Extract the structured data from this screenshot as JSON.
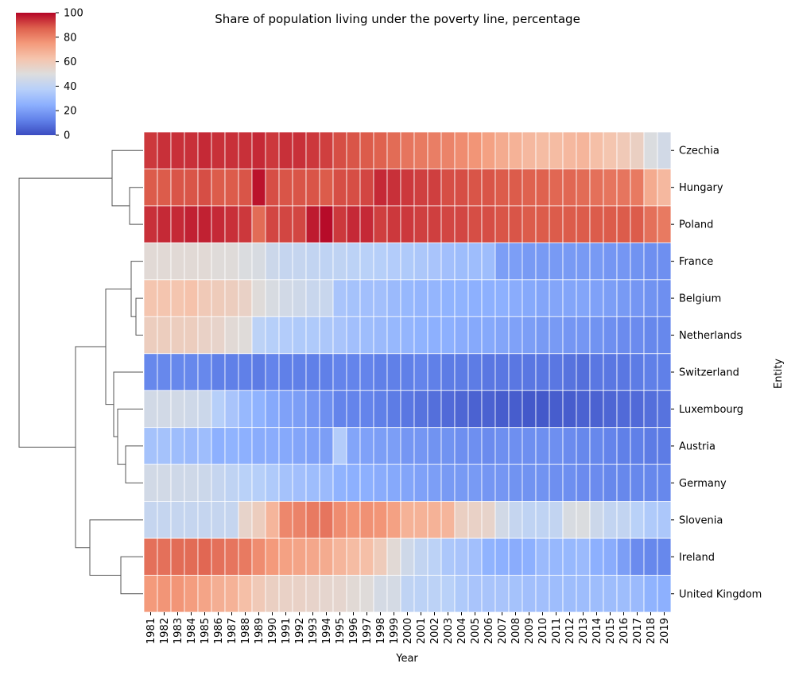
{
  "chart_data": {
    "type": "heatmap",
    "title": "Share of population living under the poverty line, percentage",
    "xlabel": "Year",
    "ylabel": "Entity",
    "colormap": "coolwarm",
    "vmin": 0,
    "vmax": 100,
    "colorbar_ticks": [
      "0",
      "20",
      "40",
      "60",
      "80",
      "100"
    ],
    "colorbar_placement": "top-left",
    "dendrogram": "rows",
    "years": [
      "1981",
      "1982",
      "1983",
      "1984",
      "1985",
      "1986",
      "1987",
      "1988",
      "1989",
      "1990",
      "1991",
      "1992",
      "1993",
      "1994",
      "1995",
      "1996",
      "1997",
      "1998",
      "1999",
      "2000",
      "2001",
      "2002",
      "2003",
      "2004",
      "2005",
      "2006",
      "2007",
      "2008",
      "2009",
      "2010",
      "2011",
      "2012",
      "2013",
      "2014",
      "2015",
      "2016",
      "2017",
      "2018",
      "2019"
    ],
    "entities": [
      "Czechia",
      "Hungary",
      "Poland",
      "France",
      "Belgium",
      "Netherlands",
      "Switzerland",
      "Luxembourg",
      "Austria",
      "Germany",
      "Slovenia",
      "Ireland",
      "United Kingdom"
    ],
    "values": [
      [
        93,
        94,
        94,
        94,
        95,
        94,
        94,
        94,
        95,
        93,
        94,
        94,
        93,
        92,
        90,
        89,
        88,
        87,
        85,
        83,
        82,
        81,
        80,
        78,
        76,
        73,
        70,
        68,
        66,
        65,
        65,
        66,
        67,
        64,
        62,
        60,
        57,
        49,
        46
      ],
      [
        88,
        88,
        89,
        89,
        90,
        88,
        88,
        89,
        98,
        90,
        89,
        89,
        89,
        88,
        90,
        90,
        91,
        95,
        94,
        93,
        92,
        92,
        90,
        90,
        89,
        89,
        88,
        88,
        87,
        87,
        86,
        86,
        85,
        84,
        83,
        83,
        82,
        70,
        66
      ],
      [
        94,
        95,
        95,
        96,
        96,
        95,
        94,
        93,
        85,
        91,
        91,
        91,
        97,
        99,
        93,
        95,
        95,
        92,
        93,
        93,
        92,
        92,
        91,
        91,
        90,
        90,
        89,
        89,
        88,
        88,
        88,
        88,
        88,
        88,
        88,
        88,
        88,
        84,
        82
      ],
      [
        52,
        52,
        52,
        52,
        52,
        51,
        51,
        49,
        48,
        44,
        42,
        42,
        41,
        40,
        40,
        39,
        38,
        37,
        36,
        35,
        34,
        33,
        31,
        30,
        30,
        30,
        20,
        20,
        19,
        19,
        19,
        19,
        19,
        19,
        18,
        18,
        17,
        16,
        16
      ],
      [
        62,
        62,
        62,
        63,
        60,
        59,
        58,
        56,
        51,
        48,
        46,
        45,
        43,
        43,
        33,
        32,
        31,
        31,
        29,
        28,
        27,
        27,
        26,
        26,
        25,
        25,
        25,
        24,
        23,
        22,
        22,
        22,
        22,
        21,
        20,
        19,
        18,
        17,
        16
      ],
      [
        58,
        58,
        58,
        58,
        56,
        55,
        52,
        51,
        39,
        37,
        36,
        35,
        35,
        34,
        33,
        31,
        30,
        29,
        28,
        27,
        26,
        25,
        25,
        24,
        23,
        23,
        22,
        21,
        20,
        19,
        19,
        18,
        18,
        17,
        16,
        15,
        15,
        14,
        14
      ],
      [
        14,
        14,
        14,
        14,
        14,
        12,
        12,
        12,
        11,
        13,
        12,
        12,
        12,
        12,
        13,
        13,
        13,
        12,
        12,
        12,
        13,
        12,
        11,
        11,
        11,
        10,
        10,
        10,
        10,
        10,
        10,
        9,
        8,
        10,
        10,
        10,
        11,
        12,
        12
      ],
      [
        46,
        46,
        46,
        45,
        44,
        37,
        33,
        28,
        26,
        23,
        21,
        20,
        18,
        16,
        13,
        13,
        13,
        12,
        11,
        10,
        9,
        8,
        7,
        6,
        5,
        5,
        4,
        4,
        3,
        3,
        4,
        4,
        5,
        5,
        6,
        7,
        7,
        8,
        9
      ],
      [
        32,
        32,
        30,
        29,
        30,
        25,
        26,
        25,
        24,
        24,
        23,
        22,
        21,
        20,
        36,
        22,
        21,
        20,
        20,
        18,
        18,
        17,
        17,
        16,
        16,
        15,
        16,
        16,
        16,
        16,
        16,
        15,
        14,
        14,
        13,
        12,
        12,
        11,
        11
      ],
      [
        46,
        46,
        45,
        45,
        44,
        42,
        40,
        38,
        37,
        35,
        32,
        31,
        30,
        29,
        26,
        25,
        25,
        24,
        23,
        22,
        21,
        20,
        19,
        19,
        19,
        18,
        18,
        17,
        17,
        17,
        16,
        16,
        15,
        15,
        14,
        14,
        14,
        14,
        14
      ],
      [
        42,
        42,
        42,
        42,
        42,
        42,
        42,
        55,
        58,
        67,
        79,
        80,
        82,
        83,
        78,
        76,
        77,
        76,
        73,
        68,
        68,
        68,
        67,
        57,
        56,
        55,
        46,
        42,
        40,
        40,
        41,
        48,
        49,
        44,
        41,
        41,
        38,
        35,
        34
      ],
      [
        84,
        84,
        85,
        85,
        86,
        84,
        83,
        82,
        78,
        75,
        73,
        72,
        71,
        70,
        67,
        65,
        64,
        59,
        52,
        45,
        41,
        39,
        34,
        33,
        31,
        26,
        25,
        24,
        25,
        29,
        28,
        28,
        29,
        25,
        24,
        20,
        15,
        14,
        14
      ],
      [
        75,
        76,
        76,
        74,
        72,
        69,
        68,
        64,
        60,
        57,
        56,
        56,
        55,
        54,
        54,
        52,
        51,
        47,
        47,
        40,
        39,
        39,
        38,
        35,
        33,
        33,
        33,
        32,
        31,
        31,
        30,
        30,
        30,
        30,
        30,
        30,
        29,
        26,
        25
      ]
    ]
  }
}
